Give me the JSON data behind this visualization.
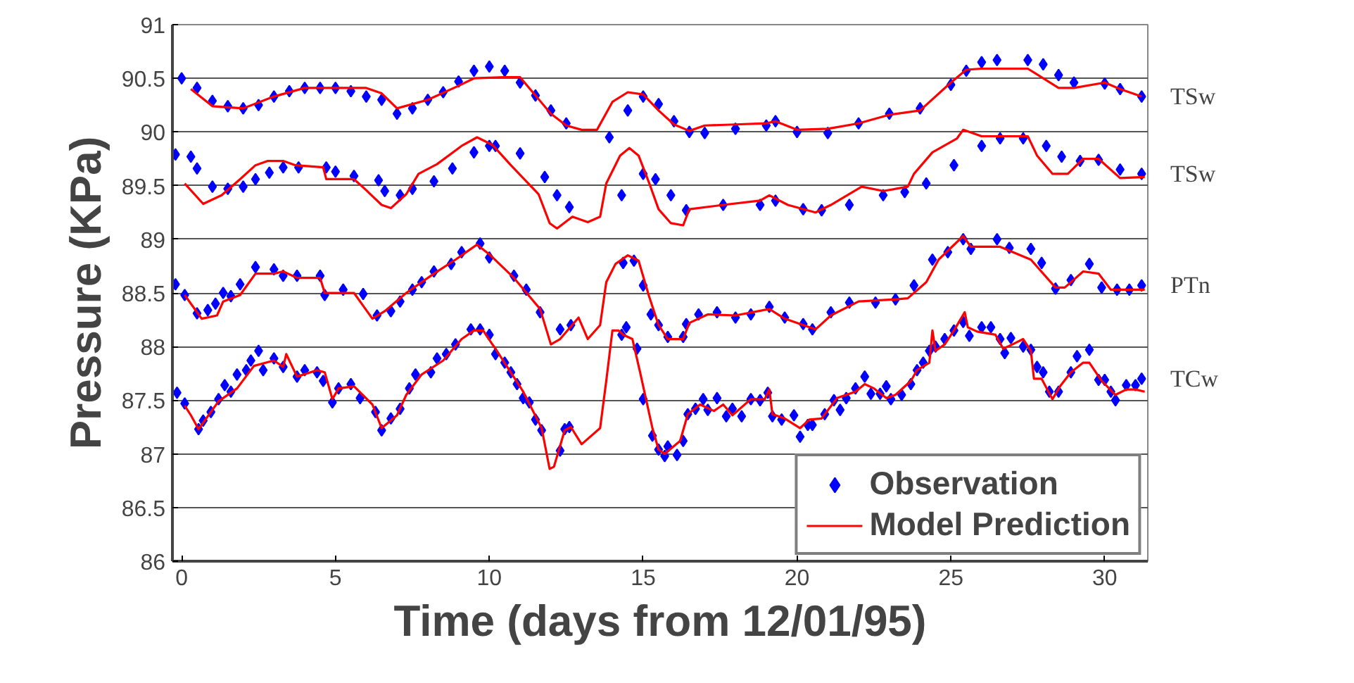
{
  "chart_data": {
    "type": "scatter",
    "xlabel": "Time (days from 12/01/95)",
    "ylabel": "Pressure (KPa)",
    "xlim": [
      -0.3,
      31.4
    ],
    "ylim": [
      86,
      91
    ],
    "xticks": [
      0,
      5,
      10,
      15,
      20,
      25,
      30
    ],
    "yticks": [
      86,
      86.5,
      87,
      87.5,
      88,
      88.5,
      89,
      89.5,
      90,
      90.5,
      91
    ],
    "grid": "y",
    "legend": "bottom right",
    "line_style": "solid",
    "annotations": [
      "TSw",
      "TSw",
      "PTn",
      "TCw"
    ],
    "series": [
      {
        "name": "Observation",
        "marker": "diamond",
        "color": "#0000ff",
        "x": [
          0,
          0.5,
          1,
          1.5,
          2,
          2.5,
          3,
          3.5,
          4,
          4.5,
          5,
          5.5,
          6,
          6.5,
          7,
          7.5,
          8,
          8.5,
          9,
          9.5,
          10,
          10.5,
          11,
          11.5,
          12,
          12.5,
          13.9,
          14.5,
          15,
          15.5,
          16,
          16.5,
          17,
          18,
          19,
          19.3,
          20,
          21,
          22,
          23,
          24,
          25,
          25.5,
          26,
          26.5,
          27.5,
          28,
          28.5,
          29,
          30,
          30.5,
          31.2
        ],
        "values": [
          90.5,
          90.41,
          90.29,
          90.24,
          90.22,
          90.25,
          90.33,
          90.38,
          90.41,
          90.41,
          90.41,
          90.38,
          90.33,
          90.3,
          90.17,
          90.22,
          90.3,
          90.37,
          90.47,
          90.57,
          90.61,
          90.57,
          90.46,
          90.34,
          90.2,
          90.08,
          89.95,
          90.2,
          90.33,
          90.26,
          90.1,
          90.0,
          89.99,
          90.03,
          90.06,
          90.1,
          90.0,
          89.99,
          90.08,
          90.17,
          90.22,
          90.44,
          90.57,
          90.65,
          90.67,
          90.67,
          90.63,
          90.53,
          90.46,
          90.45,
          90.4,
          90.33
        ]
      },
      {
        "name": "Model Prediction",
        "type": "line",
        "marker": "none",
        "color": "#ff0000",
        "x": [
          0.3,
          1,
          2,
          3,
          4,
          5,
          6,
          6.5,
          7,
          8,
          9,
          9.5,
          10.5,
          11,
          12,
          12.5,
          13,
          13.5,
          14,
          14.5,
          15,
          15.5,
          16,
          16.5,
          17,
          18,
          19,
          19.3,
          20,
          21,
          22,
          23,
          24,
          25,
          25.5,
          26,
          27.5,
          28,
          28.5,
          29,
          30,
          30.5,
          31.2
        ],
        "values": [
          90.4,
          90.24,
          90.22,
          90.33,
          90.41,
          90.41,
          90.41,
          90.36,
          90.22,
          90.3,
          90.43,
          90.5,
          90.51,
          90.51,
          90.17,
          90.06,
          90.02,
          90.02,
          90.28,
          90.37,
          90.35,
          90.2,
          90.07,
          90.01,
          90.06,
          90.07,
          90.08,
          90.1,
          90.02,
          90.03,
          90.08,
          90.16,
          90.2,
          90.46,
          90.58,
          90.59,
          90.59,
          90.5,
          90.41,
          90.41,
          90.46,
          90.4,
          90.33
        ]
      },
      {
        "marker": "diamond",
        "color": "#0000ff",
        "x": [
          -0.2,
          0.3,
          0.5,
          1,
          1.5,
          2,
          2.4,
          2.85,
          3.3,
          3.8,
          4.7,
          5,
          5.6,
          6.4,
          6.6,
          7.1,
          7.5,
          8.2,
          8.8,
          9.5,
          10,
          10.2,
          11,
          11.8,
          12.2,
          12.6,
          14.3,
          15,
          15.4,
          15.9,
          16.4,
          17.6,
          18.8,
          19.3,
          20.2,
          20.8,
          21.7,
          22.8,
          23.5,
          24.2,
          25.1,
          26,
          26.6,
          27.35,
          28.1,
          28.6,
          29.2,
          29.8,
          30.5,
          31.2
        ],
        "values": [
          89.79,
          89.77,
          89.66,
          89.49,
          89.47,
          89.49,
          89.56,
          89.62,
          89.67,
          89.67,
          89.67,
          89.63,
          89.59,
          89.55,
          89.45,
          89.41,
          89.47,
          89.54,
          89.66,
          89.81,
          89.87,
          89.87,
          89.8,
          89.58,
          89.41,
          89.3,
          89.41,
          89.61,
          89.56,
          89.41,
          89.27,
          89.32,
          89.32,
          89.36,
          89.28,
          89.27,
          89.32,
          89.41,
          89.44,
          89.52,
          89.69,
          89.87,
          89.94,
          89.94,
          89.87,
          89.77,
          89.73,
          89.74,
          89.65,
          89.61
        ]
      },
      {
        "type": "line",
        "marker": "none",
        "color": "#ff0000",
        "x": [
          0.1,
          0.7,
          1.3,
          1.9,
          2.4,
          2.8,
          3.3,
          3.7,
          4.6,
          4.7,
          5.6,
          5.95,
          6.5,
          6.8,
          7.3,
          7.7,
          8.3,
          9.1,
          9.6,
          10.1,
          10.7,
          11.6,
          11.96,
          12.2,
          12.7,
          13.2,
          13.6,
          13.8,
          14.25,
          14.55,
          14.85,
          15.2,
          15.5,
          15.9,
          16.3,
          16.5,
          17.6,
          18.8,
          19.1,
          19.7,
          20.6,
          21.1,
          22.1,
          22.8,
          23.6,
          23.8,
          24.4,
          25.2,
          25.4,
          26,
          27.5,
          27.8,
          28.3,
          28.8,
          29.3,
          29.8,
          30.5,
          31.3
        ],
        "values": [
          89.52,
          89.33,
          89.41,
          89.56,
          89.69,
          89.73,
          89.73,
          89.69,
          89.67,
          89.56,
          89.56,
          89.47,
          89.32,
          89.29,
          89.42,
          89.61,
          89.7,
          89.87,
          89.95,
          89.88,
          89.69,
          89.42,
          89.15,
          89.1,
          89.21,
          89.16,
          89.21,
          89.52,
          89.78,
          89.85,
          89.78,
          89.52,
          89.28,
          89.15,
          89.13,
          89.28,
          89.32,
          89.36,
          89.41,
          89.32,
          89.25,
          89.32,
          89.49,
          89.45,
          89.49,
          89.61,
          89.81,
          89.94,
          90.02,
          89.96,
          89.96,
          89.78,
          89.61,
          89.61,
          89.75,
          89.75,
          89.57,
          89.58
        ]
      },
      {
        "marker": "diamond",
        "color": "#0000ff",
        "x": [
          -0.2,
          0.1,
          0.5,
          0.85,
          1.1,
          1.35,
          1.6,
          1.9,
          2.4,
          3,
          3.3,
          3.75,
          4.5,
          4.65,
          5.25,
          5.9,
          6.35,
          6.8,
          7.1,
          7.5,
          7.8,
          8.2,
          8.76,
          9.1,
          9.7,
          10,
          10.8,
          11.2,
          11.65,
          12.3,
          12.65,
          14.35,
          14.7,
          15,
          15.25,
          15.5,
          15.8,
          16.3,
          16.4,
          16.8,
          17.4,
          18,
          18.5,
          19.1,
          19.6,
          20.2,
          20.5,
          21.1,
          21.7,
          22.55,
          23.2,
          23.8,
          24.4,
          24.9,
          25.4,
          25.65,
          26.5,
          26.9,
          27.6,
          27.95,
          28.4,
          28.9,
          29.5,
          29.9,
          30.4,
          30.8,
          31.2
        ],
        "values": [
          88.58,
          88.48,
          88.31,
          88.34,
          88.4,
          88.5,
          88.47,
          88.58,
          88.74,
          88.72,
          88.66,
          88.66,
          88.66,
          88.48,
          88.53,
          88.49,
          88.29,
          88.33,
          88.42,
          88.53,
          88.6,
          88.7,
          88.77,
          88.88,
          88.96,
          88.83,
          88.66,
          88.53,
          88.32,
          88.16,
          88.2,
          88.78,
          88.8,
          88.57,
          88.3,
          88.2,
          88.09,
          88.09,
          88.21,
          88.3,
          88.32,
          88.27,
          88.3,
          88.37,
          88.27,
          88.21,
          88.16,
          88.32,
          88.41,
          88.41,
          88.44,
          88.57,
          88.81,
          88.88,
          89.0,
          88.91,
          89.0,
          88.92,
          88.91,
          88.78,
          88.54,
          88.62,
          88.77,
          88.55,
          88.53,
          88.53,
          88.57
        ]
      },
      {
        "type": "line",
        "marker": "none",
        "color": "#ff0000",
        "x": [
          0.1,
          0.65,
          1.15,
          1.35,
          1.9,
          2.4,
          3,
          3.3,
          3.75,
          4.5,
          4.65,
          5.6,
          6.2,
          6.6,
          7.3,
          8.2,
          8.9,
          9.6,
          10,
          10.8,
          11.65,
          12,
          12.3,
          12.9,
          13.2,
          13.6,
          13.8,
          14.1,
          14.5,
          14.85,
          15.2,
          15.5,
          15.8,
          16.3,
          16.5,
          17.1,
          18,
          19.1,
          19.6,
          20.6,
          21.1,
          22,
          23.2,
          23.6,
          24.2,
          24.6,
          25.4,
          25.65,
          26.6,
          27.6,
          28.4,
          28.7,
          29.3,
          29.8,
          30.2,
          30.8,
          31.3
        ],
        "values": [
          88.48,
          88.26,
          88.29,
          88.42,
          88.48,
          88.68,
          88.68,
          88.7,
          88.64,
          88.64,
          88.5,
          88.5,
          88.26,
          88.33,
          88.5,
          88.68,
          88.81,
          88.95,
          88.86,
          88.64,
          88.35,
          88.02,
          88.07,
          88.27,
          88.07,
          88.2,
          88.6,
          88.77,
          88.85,
          88.8,
          88.46,
          88.2,
          88.07,
          88.07,
          88.22,
          88.3,
          88.29,
          88.35,
          88.26,
          88.16,
          88.29,
          88.42,
          88.44,
          88.45,
          88.6,
          88.81,
          89.03,
          88.93,
          88.93,
          88.81,
          88.55,
          88.55,
          88.7,
          88.68,
          88.53,
          88.53,
          88.53
        ]
      },
      {
        "marker": "diamond",
        "color": "#0000ff",
        "x": [
          -0.15,
          0.1,
          0.55,
          0.7,
          0.95,
          1.2,
          1.4,
          1.6,
          1.8,
          2.1,
          2.25,
          2.5,
          2.65,
          3,
          3.3,
          3.75,
          4,
          4.4,
          4.6,
          4.9,
          5.1,
          5.5,
          5.8,
          6.3,
          6.5,
          6.8,
          7.1,
          7.4,
          7.6,
          8.1,
          8.3,
          8.6,
          8.9,
          9.4,
          9.7,
          10,
          10.2,
          10.5,
          10.7,
          10.9,
          11.1,
          11.3,
          11.5,
          11.7,
          12.3,
          12.45,
          12.6,
          14.3,
          14.45,
          14.8,
          15,
          15.3,
          15.5,
          15.7,
          15.8,
          16.1,
          16.3,
          16.45,
          16.7,
          16.95,
          17.1,
          17.4,
          17.7,
          17.9,
          18.2,
          18.5,
          18.8,
          19.05,
          19.2,
          19.5,
          19.9,
          20.1,
          20.35,
          20.5,
          20.9,
          21.2,
          21.4,
          21.6,
          21.9,
          22.2,
          22.4,
          22.7,
          22.9,
          23.05,
          23.4,
          23.7,
          23.9,
          24.1,
          24.3,
          24.5,
          24.8,
          25.1,
          25.4,
          25.6,
          26,
          26.3,
          26.6,
          26.75,
          26.95,
          27.35,
          27.6,
          27.8,
          28,
          28.2,
          28.5,
          28.9,
          29.1,
          29.5,
          29.8,
          30,
          30.2,
          30.35,
          30.7,
          31,
          31.2
        ],
        "values": [
          87.57,
          87.47,
          87.23,
          87.31,
          87.39,
          87.51,
          87.64,
          87.58,
          87.74,
          87.78,
          87.87,
          87.96,
          87.78,
          87.89,
          87.81,
          87.72,
          87.78,
          87.76,
          87.68,
          87.48,
          87.61,
          87.65,
          87.52,
          87.39,
          87.22,
          87.33,
          87.42,
          87.61,
          87.74,
          87.76,
          87.89,
          87.93,
          88.02,
          88.16,
          88.16,
          88.11,
          87.93,
          87.85,
          87.76,
          87.65,
          87.52,
          87.48,
          87.32,
          87.22,
          87.03,
          87.23,
          87.25,
          88.11,
          88.18,
          87.98,
          87.51,
          87.17,
          87.04,
          86.98,
          87.07,
          86.99,
          87.12,
          87.37,
          87.42,
          87.51,
          87.41,
          87.52,
          87.35,
          87.42,
          87.35,
          87.51,
          87.5,
          87.57,
          87.35,
          87.32,
          87.36,
          87.16,
          87.27,
          87.27,
          87.37,
          87.5,
          87.41,
          87.52,
          87.61,
          87.72,
          87.56,
          87.56,
          87.63,
          87.51,
          87.55,
          87.65,
          87.78,
          87.85,
          87.96,
          88.0,
          88.07,
          88.15,
          88.23,
          88.1,
          88.18,
          88.18,
          88.07,
          87.94,
          88.08,
          88.0,
          87.97,
          87.81,
          87.76,
          87.58,
          87.58,
          87.76,
          87.91,
          87.97,
          87.69,
          87.69,
          87.58,
          87.5,
          87.64,
          87.64,
          87.7
        ]
      },
      {
        "type": "line",
        "marker": "none",
        "color": "#ff0000",
        "x": [
          0.1,
          0.3,
          0.55,
          1.2,
          1.8,
          2.35,
          3,
          3.3,
          3.4,
          3.75,
          4.4,
          4.65,
          4.9,
          5.1,
          5.6,
          6.2,
          6.5,
          7,
          7.3,
          7.8,
          8.5,
          9.1,
          9.5,
          9.8,
          10.1,
          10.2,
          11.1,
          11.7,
          11.96,
          12.1,
          12.45,
          12.65,
          13,
          13.6,
          13.8,
          14,
          14.2,
          14.35,
          14.65,
          14.9,
          15.3,
          15.5,
          15.7,
          16.2,
          16.45,
          16.85,
          17.3,
          17.6,
          17.9,
          18.5,
          18.95,
          19.1,
          19.2,
          19.6,
          20.1,
          20.4,
          20.8,
          21.3,
          21.9,
          22.2,
          22.5,
          22.9,
          23.2,
          23.7,
          23.9,
          24.3,
          24.4,
          24.5,
          24.8,
          25.1,
          25.45,
          25.55,
          25.85,
          26.45,
          26.7,
          27,
          27.35,
          27.6,
          27.7,
          27.95,
          28.3,
          28.55,
          28.9,
          29.3,
          29.5,
          29.9,
          30.35,
          30.7,
          31,
          31.3
        ],
        "values": [
          87.45,
          87.36,
          87.23,
          87.49,
          87.61,
          87.82,
          87.87,
          87.81,
          87.93,
          87.72,
          87.78,
          87.76,
          87.51,
          87.61,
          87.63,
          87.46,
          87.24,
          87.36,
          87.55,
          87.74,
          87.87,
          88.07,
          88.15,
          88.15,
          88.02,
          87.98,
          87.58,
          87.24,
          86.86,
          86.88,
          87.22,
          87.25,
          87.09,
          87.24,
          87.68,
          88.15,
          88.15,
          88.11,
          88.07,
          87.76,
          87.24,
          87.04,
          87.0,
          87.12,
          87.37,
          87.46,
          87.4,
          87.46,
          87.36,
          87.51,
          87.51,
          87.6,
          87.37,
          87.33,
          87.24,
          87.32,
          87.33,
          87.52,
          87.58,
          87.65,
          87.61,
          87.52,
          87.55,
          87.68,
          87.78,
          87.85,
          88.15,
          87.96,
          88.02,
          88.15,
          88.32,
          88.18,
          88.14,
          88.11,
          87.98,
          88.02,
          88.07,
          87.96,
          87.7,
          87.7,
          87.51,
          87.63,
          87.76,
          87.85,
          87.85,
          87.68,
          87.55,
          87.6,
          87.6,
          87.58
        ]
      }
    ]
  }
}
